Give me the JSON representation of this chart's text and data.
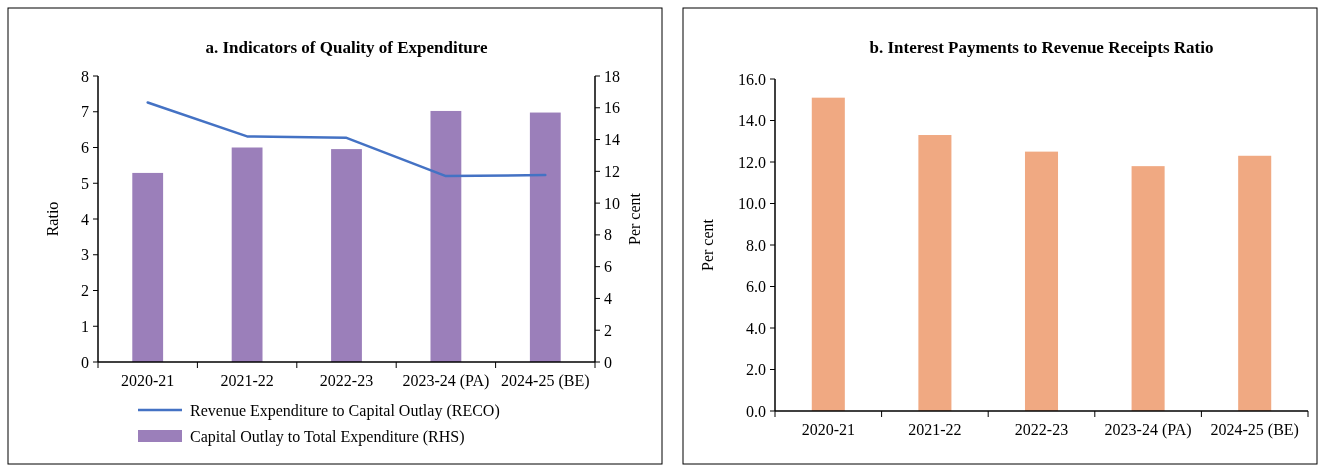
{
  "chart_data": [
    {
      "type": "bar",
      "title": "a. Indicators of Quality of Expenditure",
      "ylabel": "Ratio",
      "y2label": "Per cent",
      "categories": [
        "2020-21",
        "2021-22",
        "2022-23",
        "2023-24 (PA)",
        "2024-25 (BE)"
      ],
      "series": [
        {
          "name": "Revenue Expenditure to Capital Outlay (RECO)",
          "type": "line",
          "color": "#4472c4",
          "values": [
            7.26,
            6.31,
            6.27,
            5.2,
            5.23
          ]
        },
        {
          "name": "Capital Outlay to Total Expenditure (RHS)",
          "axis": "y2",
          "color": "#9b7fba",
          "values": [
            11.9,
            13.5,
            13.4,
            15.8,
            15.7
          ]
        }
      ],
      "ylim": [
        0,
        8
      ],
      "yticks": [
        0,
        1,
        2,
        3,
        4,
        5,
        6,
        7,
        8
      ],
      "y2lim": [
        0,
        18
      ],
      "y2ticks": [
        0,
        2,
        4,
        6,
        8,
        10,
        12,
        14,
        16,
        18
      ],
      "legend": "bottom",
      "marker": "none",
      "grid": false
    },
    {
      "type": "bar",
      "title": "b. Interest Payments to Revenue Receipts Ratio",
      "ylabel": "Per cent",
      "categories": [
        "2020-21",
        "2021-22",
        "2022-23",
        "2023-24 (PA)",
        "2024-25 (BE)"
      ],
      "series": [
        {
          "color": "#f0a982",
          "values": [
            15.1,
            13.3,
            12.5,
            11.8,
            12.3
          ]
        }
      ],
      "ylim": [
        0,
        16
      ],
      "yticks": [
        {
          "value": 0,
          "label": "0.0"
        },
        {
          "value": 2,
          "label": "2.0"
        },
        {
          "value": 4,
          "label": "4.0"
        },
        {
          "value": 6,
          "label": "6.0"
        },
        {
          "value": 8,
          "label": "8.0"
        },
        {
          "value": 10,
          "label": "10.0"
        },
        {
          "value": 12,
          "label": "12.0"
        },
        {
          "value": 14,
          "label": "14.0"
        },
        {
          "value": 16,
          "label": "16.0"
        }
      ],
      "grid": false
    }
  ]
}
